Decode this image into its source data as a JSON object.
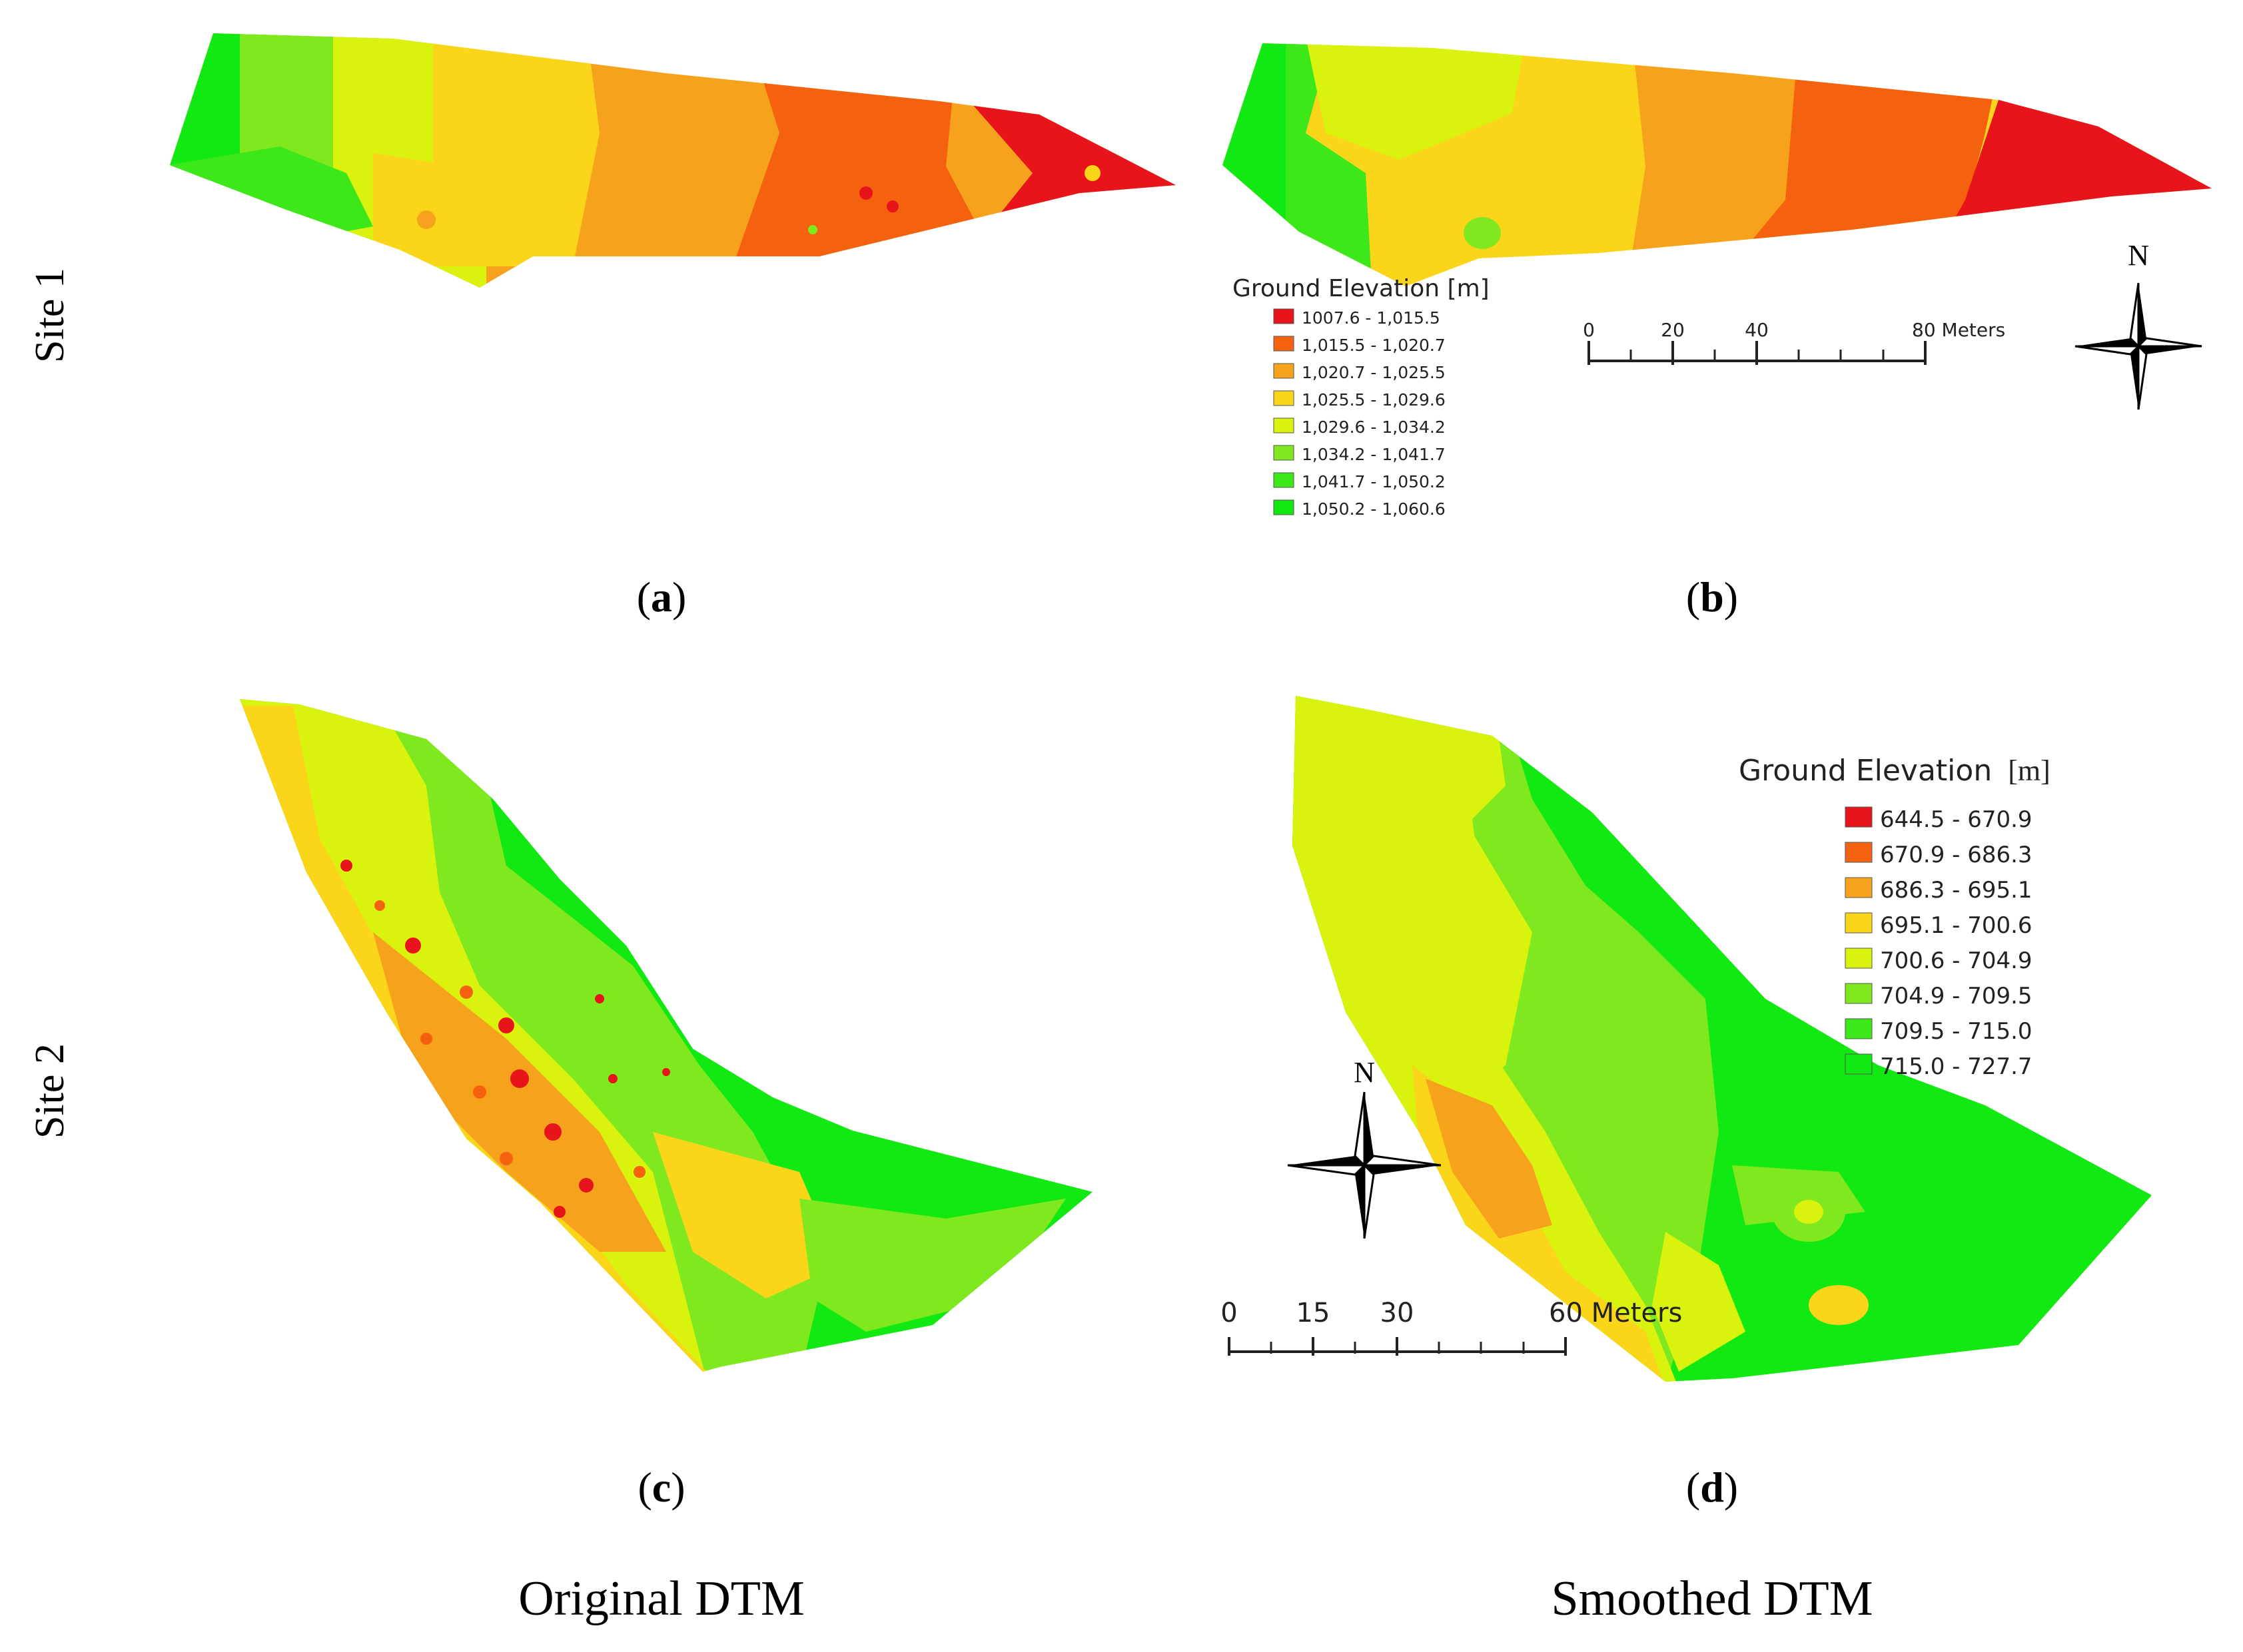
{
  "rows": [
    {
      "label": "Site 1"
    },
    {
      "label": "Site 2"
    }
  ],
  "columns": [
    {
      "label": "Original DTM"
    },
    {
      "label": "Smoothed DTM"
    }
  ],
  "panels": [
    {
      "letter": "a",
      "open": "(",
      "close": ")"
    },
    {
      "letter": "b",
      "open": "(",
      "close": ")"
    },
    {
      "letter": "c",
      "open": "(",
      "close": ")"
    },
    {
      "letter": "d",
      "open": "(",
      "close": ")"
    }
  ],
  "legend_site1": {
    "title": "Ground Elevation [m]",
    "items": [
      {
        "label": "1007.6 - 1,015.5",
        "color": "#e8141b"
      },
      {
        "label": "1,015.5 - 1,020.7",
        "color": "#f5620f"
      },
      {
        "label": "1,020.7 - 1,025.5",
        "color": "#f7a21d"
      },
      {
        "label": "1,025.5 - 1,029.6",
        "color": "#fbd51a"
      },
      {
        "label": "1,029.6 - 1,034.2",
        "color": "#d9f20e"
      },
      {
        "label": "1,034.2 - 1,041.7",
        "color": "#7fe81e"
      },
      {
        "label": "1,041.7 - 1,050.2",
        "color": "#3de81a"
      },
      {
        "label": "1,050.2 - 1,060.6",
        "color": "#12e812"
      }
    ]
  },
  "legend_site2": {
    "title": "Ground Elevation",
    "unit": "[m]",
    "items": [
      {
        "label": "644.5 - 670.9",
        "color": "#e8141b"
      },
      {
        "label": "670.9 - 686.3",
        "color": "#f5620f"
      },
      {
        "label": "686.3 - 695.1",
        "color": "#f7a21d"
      },
      {
        "label": "695.1 - 700.6",
        "color": "#fbd51a"
      },
      {
        "label": "700.6 - 704.9",
        "color": "#d9f20e"
      },
      {
        "label": "704.9 - 709.5",
        "color": "#7fe81e"
      },
      {
        "label": "709.5 - 715.0",
        "color": "#3de81a"
      },
      {
        "label": "715.0 - 727.7",
        "color": "#12e812"
      }
    ]
  },
  "scale_site1": {
    "ticks": [
      "0",
      "20",
      "40",
      "80 Meters"
    ]
  },
  "scale_site2": {
    "ticks": [
      "0",
      "15",
      "30",
      "60 Meters"
    ]
  },
  "north_label": "N"
}
